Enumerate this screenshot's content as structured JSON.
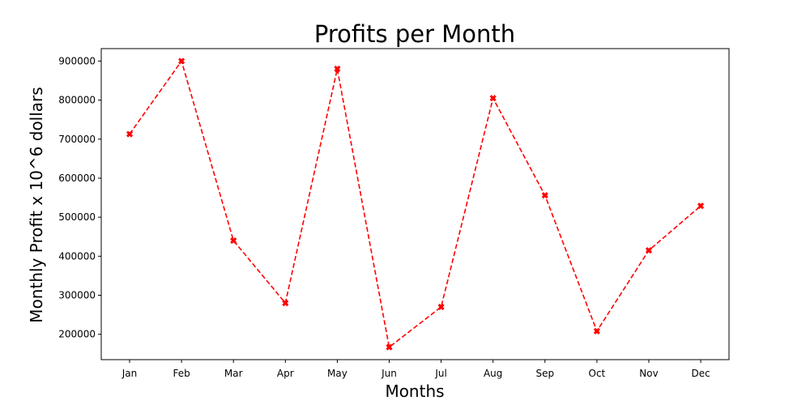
{
  "chart_data": {
    "type": "line",
    "title": "Profits per Month",
    "xlabel": "Months",
    "ylabel": "Monthly Profit x 10^6 dollars",
    "categories": [
      "Jan",
      "Feb",
      "Mar",
      "Apr",
      "May",
      "Jun",
      "Jul",
      "Aug",
      "Sep",
      "Oct",
      "Nov",
      "Dec"
    ],
    "series": [
      {
        "values": [
          713000,
          900000,
          440000,
          280000,
          880000,
          167000,
          270000,
          805000,
          556000,
          208000,
          415000,
          529000
        ],
        "color": "#ff0000",
        "line_style": "dashed",
        "marker": "x-filled"
      }
    ],
    "yticks": [
      200000,
      300000,
      400000,
      500000,
      600000,
      700000,
      800000,
      900000
    ],
    "ylim": [
      135000,
      932000
    ],
    "grid": false,
    "legend": "none"
  }
}
